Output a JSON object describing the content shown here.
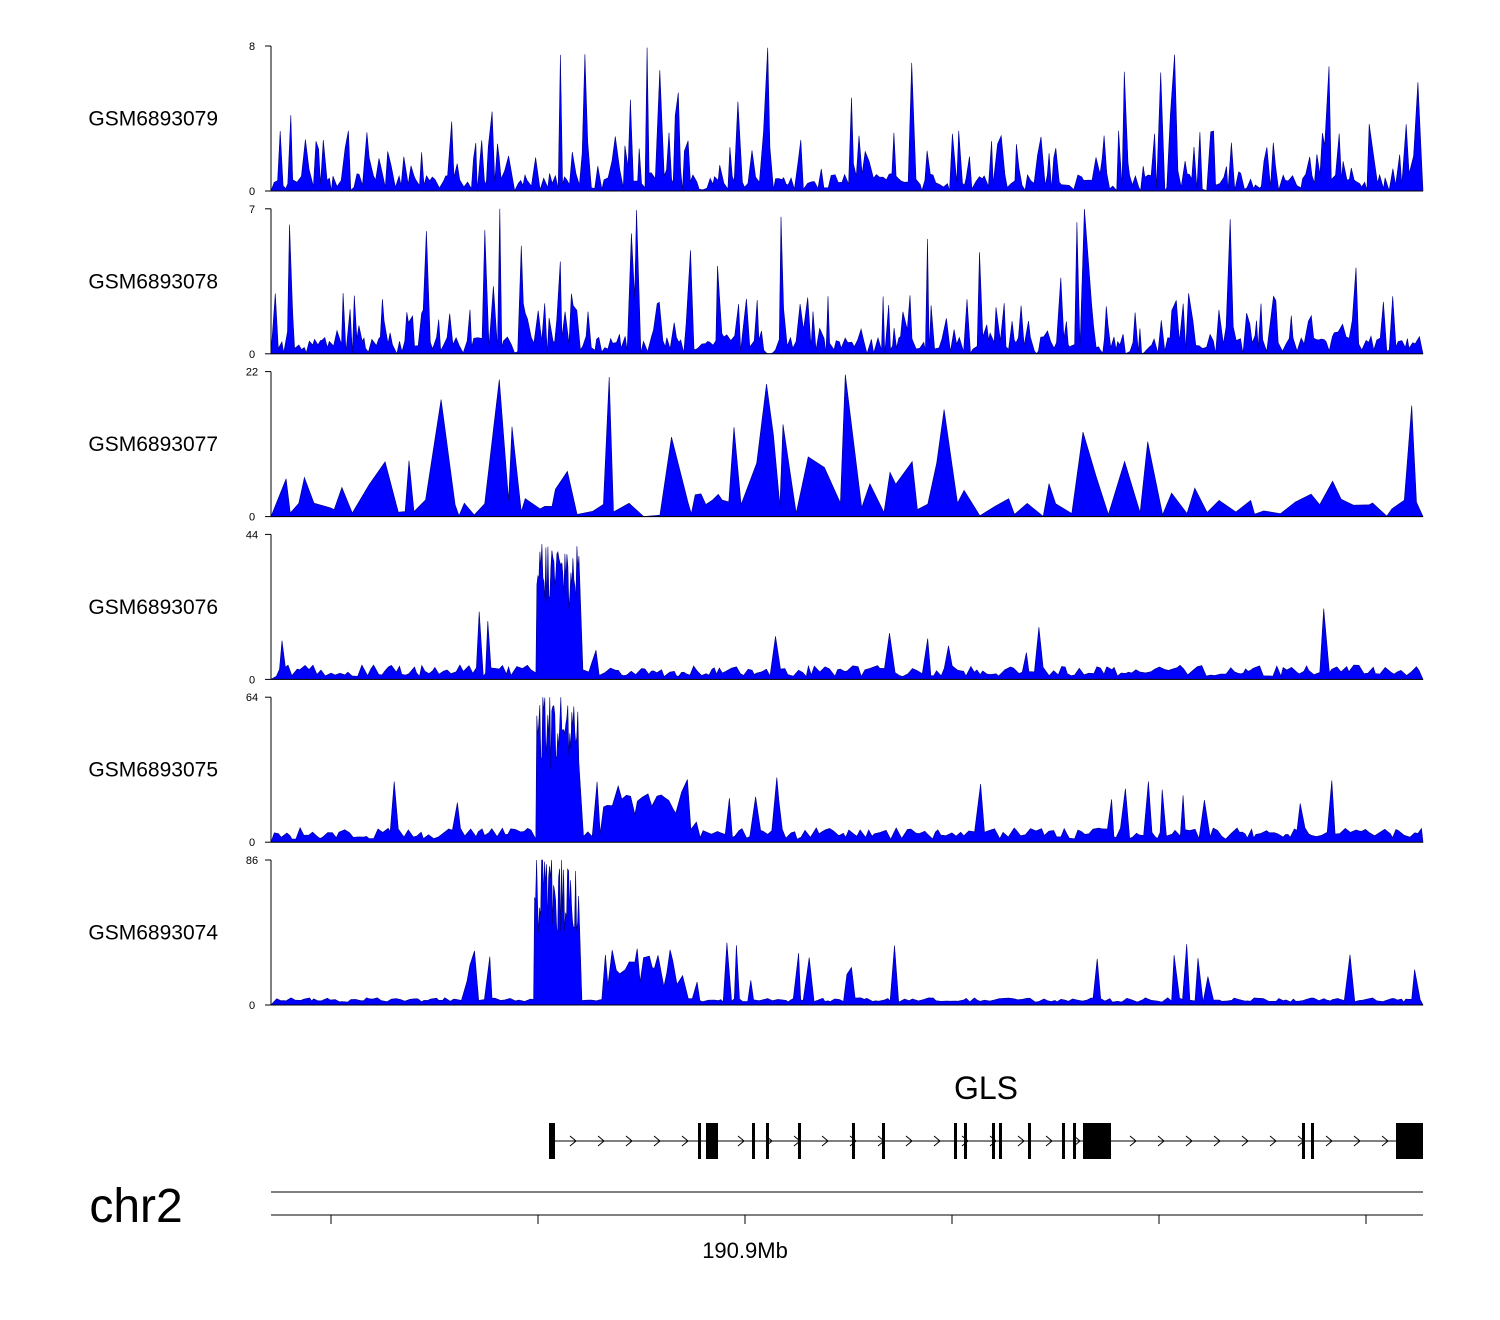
{
  "chart_data": {
    "type": "area",
    "title": "",
    "chromosome": "chr2",
    "xlabel": "190.9Mb",
    "x_tick_labels": [
      "190.9Mb"
    ],
    "x_tick_count": 6,
    "signal_color": "#0000ff",
    "tracks": [
      {
        "name": "GSM6893079",
        "ylim": [
          0,
          8
        ],
        "y_tick_labels": [
          "8",
          "0"
        ],
        "peak_region_level": 0,
        "spike_ceiling": 8
      },
      {
        "name": "GSM6893078",
        "ylim": [
          0,
          7
        ],
        "y_tick_labels": [
          "7",
          "0"
        ],
        "peak_region_level": 0,
        "spike_ceiling": 7
      },
      {
        "name": "GSM6893077",
        "ylim": [
          0,
          22
        ],
        "y_tick_labels": [
          "22",
          "0"
        ],
        "peak_region_level": 0,
        "spike_ceiling": 22
      },
      {
        "name": "GSM6893076",
        "ylim": [
          0,
          44
        ],
        "y_tick_labels": [
          "44",
          "0"
        ],
        "peak_region_level": 40,
        "spike_ceiling": 44
      },
      {
        "name": "GSM6893075",
        "ylim": [
          0,
          64
        ],
        "y_tick_labels": [
          "64",
          "0"
        ],
        "peak_region_level": 64,
        "spike_ceiling": 64
      },
      {
        "name": "GSM6893074",
        "ylim": [
          0,
          86
        ],
        "y_tick_labels": [
          "86",
          "0"
        ],
        "peak_region_level": 86,
        "spike_ceiling": 86
      }
    ],
    "gene": {
      "name": "GLS",
      "strand": "+",
      "exon_count": 19
    }
  }
}
